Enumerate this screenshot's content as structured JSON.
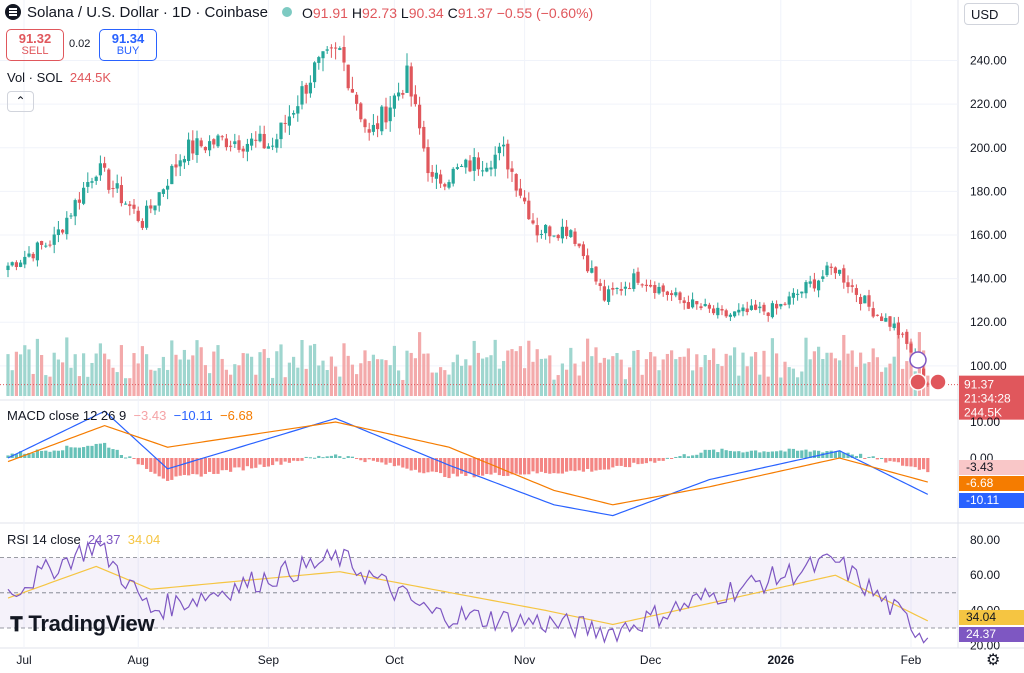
{
  "header": {
    "symbol": "Solana / U.S. Dollar · 1D · Coinbase",
    "o_label": "O",
    "o": "91.91",
    "h_label": "H",
    "h": "92.73",
    "l_label": "L",
    "l": "90.34",
    "c_label": "C",
    "c": "91.37",
    "change": "−0.55 (−0.60%)"
  },
  "trade": {
    "sell_price": "91.32",
    "sell_label": "SELL",
    "spread": "0.02",
    "buy_price": "91.34",
    "buy_label": "BUY"
  },
  "currency": "USD",
  "volume": {
    "label": "Vol · SOL",
    "value": "244.5K"
  },
  "macd": {
    "label": "MACD close 12 26 9",
    "hist": "−3.43",
    "macd": "−10.11",
    "signal": "−6.68"
  },
  "rsi": {
    "label": "RSI 14 close",
    "rsi": "24.37",
    "ma": "34.04"
  },
  "price_axis": {
    "ticks": [
      "240.00",
      "220.00",
      "200.00",
      "180.00",
      "160.00",
      "140.00",
      "120.00",
      "100.00"
    ],
    "last_price": "91.37",
    "countdown": "21:34:28",
    "last_volume": "244.5K"
  },
  "macd_axis": {
    "ticks": [
      "10.00",
      "0.00"
    ],
    "hist_label": "-3.43",
    "signal_label": "-6.68",
    "macd_label": "-10.11"
  },
  "rsi_axis": {
    "ticks": [
      "80.00",
      "60.00",
      "40.00",
      "20.00"
    ],
    "ma_label": "34.04",
    "rsi_label": "24.37"
  },
  "time_axis": [
    "Jul",
    "Aug",
    "Sep",
    "Oct",
    "Nov",
    "Dec",
    "2026",
    "Feb"
  ],
  "branding": "TradingView",
  "colors": {
    "up": "#26a69a",
    "down": "#e0575c",
    "macd": "#2962ff",
    "signal": "#f57c00",
    "rsi": "#7e57c2",
    "rsi_ma": "#f5c542"
  },
  "chart_data": {
    "type": "candlestick",
    "interval": "1D",
    "price_range": [
      88,
      254
    ],
    "keyframes": [
      {
        "x": "Jul 1",
        "close": 146
      },
      {
        "x": "Jul 12",
        "close": 158
      },
      {
        "x": "Jul 22",
        "close": 191
      },
      {
        "x": "Aug 2",
        "close": 166
      },
      {
        "x": "Aug 12",
        "close": 199
      },
      {
        "x": "Aug 22",
        "close": 204
      },
      {
        "x": "Sep 2",
        "close": 201
      },
      {
        "x": "Sep 12",
        "close": 236
      },
      {
        "x": "Sep 18",
        "close": 244
      },
      {
        "x": "Sep 25",
        "close": 205
      },
      {
        "x": "Oct 4",
        "close": 232
      },
      {
        "x": "Oct 10",
        "close": 184
      },
      {
        "x": "Oct 18",
        "close": 191
      },
      {
        "x": "Oct 27",
        "close": 198
      },
      {
        "x": "Nov 4",
        "close": 162
      },
      {
        "x": "Nov 12",
        "close": 163
      },
      {
        "x": "Nov 20",
        "close": 131
      },
      {
        "x": "Nov 28",
        "close": 141
      },
      {
        "x": "Dec 8",
        "close": 130
      },
      {
        "x": "Dec 18",
        "close": 123
      },
      {
        "x": "Dec 31",
        "close": 126
      },
      {
        "x": "Jan 10",
        "close": 140
      },
      {
        "x": "Jan 14",
        "close": 145
      },
      {
        "x": "Jan 22",
        "close": 127
      },
      {
        "x": "Jan 28",
        "close": 118
      },
      {
        "x": "Feb 3",
        "close": 101
      },
      {
        "x": "Feb 5",
        "close": 91.37
      }
    ],
    "macd_keyframes": [
      {
        "x": "Jul 1",
        "macd": 0,
        "signal": -1
      },
      {
        "x": "Jul 24",
        "macd": 13,
        "signal": 9
      },
      {
        "x": "Aug 8",
        "macd": -3,
        "signal": 3
      },
      {
        "x": "Sep 17",
        "macd": 11,
        "signal": 10
      },
      {
        "x": "Oct 14",
        "macd": -2,
        "signal": 3
      },
      {
        "x": "Nov 8",
        "macd": -13,
        "signal": -9
      },
      {
        "x": "Nov 22",
        "macd": -16,
        "signal": -13
      },
      {
        "x": "Dec 15",
        "macd": -6,
        "signal": -8
      },
      {
        "x": "Jan 15",
        "macd": 2,
        "signal": 0
      },
      {
        "x": "Feb 5",
        "macd": -10.11,
        "signal": -6.68
      }
    ],
    "rsi_keyframes": [
      {
        "x": "Jul 1",
        "rsi": 50,
        "ma": 47
      },
      {
        "x": "Jul 22",
        "rsi": 78,
        "ma": 65
      },
      {
        "x": "Aug 4",
        "rsi": 40,
        "ma": 52
      },
      {
        "x": "Sep 18",
        "rsi": 70,
        "ma": 62
      },
      {
        "x": "Oct 10",
        "rsi": 38,
        "ma": 52
      },
      {
        "x": "Nov 6",
        "rsi": 33,
        "ma": 40
      },
      {
        "x": "Nov 22",
        "rsi": 28,
        "ma": 32
      },
      {
        "x": "Dec 15",
        "rsi": 48,
        "ma": 44
      },
      {
        "x": "Jan 14",
        "rsi": 68,
        "ma": 60
      },
      {
        "x": "Feb 5",
        "rsi": 24.37,
        "ma": 34.04
      }
    ],
    "rsi_bands": [
      30,
      50,
      70
    ]
  }
}
